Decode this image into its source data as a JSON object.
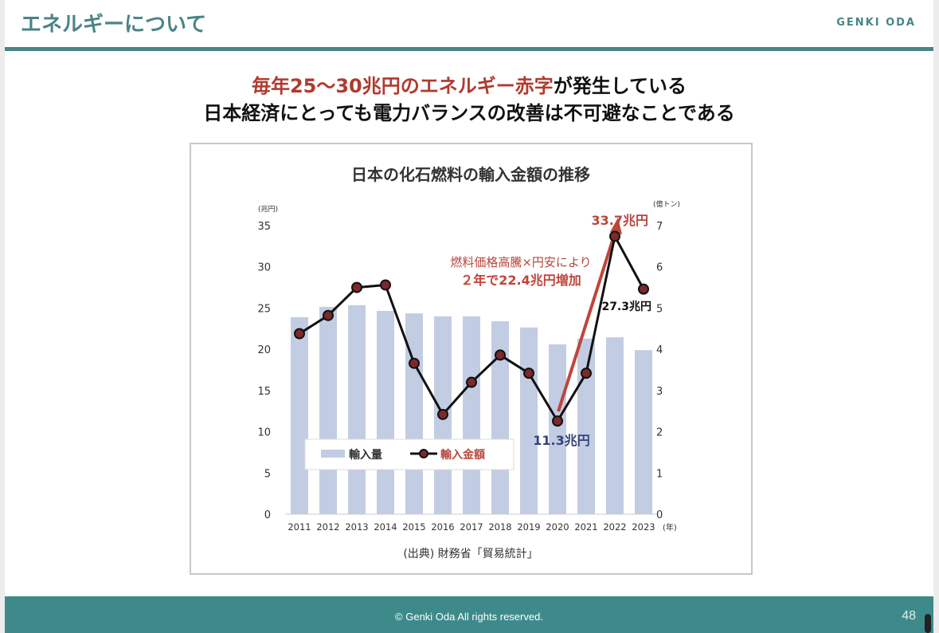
{
  "header": {
    "title": "エネルギーについて",
    "brand": "GENKI ODA"
  },
  "headline": {
    "line1_red": "毎年25〜30兆円のエネルギー赤字",
    "line1_rest": "が発生している",
    "line2": "日本経済にとっても電力バランスの改善は不可避なことである"
  },
  "chart_data": {
    "type": "bar+line",
    "title": "日本の化石燃料の輸入金額の推移",
    "categories": [
      "2011",
      "2012",
      "2013",
      "2014",
      "2015",
      "2016",
      "2017",
      "2018",
      "2019",
      "2020",
      "2021",
      "2022",
      "2023"
    ],
    "x_unit": "(年)",
    "y_left": {
      "unit": "(兆円)",
      "range": [
        0,
        35
      ],
      "ticks": [
        0,
        5,
        10,
        15,
        20,
        25,
        30,
        35
      ]
    },
    "y_right": {
      "unit": "(億トン)",
      "range": [
        0,
        7
      ],
      "ticks": [
        0,
        1,
        2,
        3,
        4,
        5,
        6,
        7
      ]
    },
    "series": [
      {
        "name": "輸入量",
        "type": "bar",
        "axis": "right",
        "color": "#c2cde3",
        "values": [
          4.78,
          5.03,
          5.07,
          4.93,
          4.87,
          4.8,
          4.8,
          4.68,
          4.53,
          4.12,
          4.26,
          4.29,
          3.98
        ]
      },
      {
        "name": "輸入金額",
        "type": "line",
        "axis": "left",
        "color": "#111111",
        "marker_color": "#7a2a2a",
        "values": [
          21.9,
          24.1,
          27.5,
          27.8,
          18.3,
          12.1,
          16.0,
          19.3,
          17.1,
          11.3,
          17.1,
          33.7,
          27.3
        ]
      }
    ],
    "annotations": {
      "peak": "33.7兆円",
      "last": "27.3兆円",
      "low": "11.3兆円",
      "arrow_line1": "燃料価格高騰×円安により",
      "arrow_line2": "２年で22.4兆円増加"
    },
    "legend": "bottom-left inside",
    "source": "(出典) 財務省「貿易統計」",
    "colors": {
      "accent_red": "#b8463c",
      "low_label": "#33457a"
    }
  },
  "footer": {
    "copyright": "© Genki Oda All rights reserved.",
    "page": "48"
  }
}
